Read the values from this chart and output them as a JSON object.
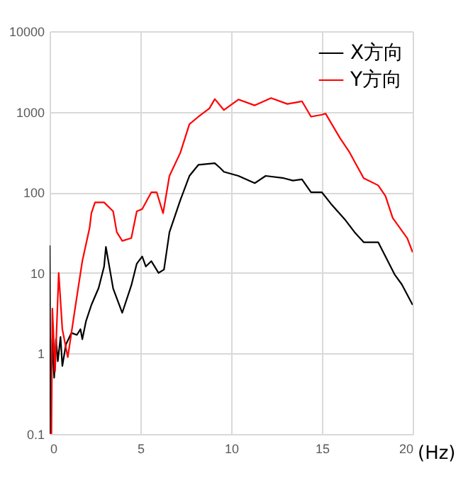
{
  "chart_data": {
    "type": "line",
    "xlabel": "(Hz)",
    "xlim": [
      0,
      20
    ],
    "xticks": [
      0,
      5,
      10,
      15,
      20
    ],
    "ylim": [
      0.1,
      10000
    ],
    "yticks": [
      0.1,
      1,
      10,
      100,
      1000,
      10000
    ],
    "log": "y",
    "grid": true,
    "legend": "top right",
    "marker": "none",
    "line_style": "solid",
    "series": [
      {
        "name": "X方向",
        "color": "#000000",
        "x": [
          0,
          0.05,
          0.15,
          0.25,
          0.35,
          0.45,
          0.6,
          0.7,
          0.9,
          1.2,
          1.5,
          1.7,
          1.8,
          2.0,
          2.3,
          2.7,
          3.0,
          3.1,
          3.5,
          4.0,
          4.5,
          4.8,
          5.1,
          5.3,
          5.6,
          6.0,
          6.3,
          6.6,
          7.2,
          7.7,
          8.2,
          9.1,
          9.4,
          9.6,
          10.4,
          11.3,
          11.9,
          12.9,
          13.4,
          13.9,
          14.4,
          15,
          15.5,
          16.3,
          16.8,
          17.3,
          18.1,
          19,
          19.4,
          20
        ],
        "values": [
          22,
          0.1,
          1.5,
          0.5,
          1.5,
          0.8,
          1.6,
          0.7,
          1.3,
          1.8,
          1.7,
          2.0,
          1.5,
          2.5,
          4,
          6.5,
          12,
          21,
          6.4,
          3.2,
          7,
          13,
          16,
          12,
          14,
          10,
          11,
          32,
          80,
          160,
          220,
          230,
          200,
          180,
          160,
          130,
          160,
          150,
          140,
          145,
          100,
          100,
          72,
          45,
          32,
          24,
          24,
          9.6,
          7.2,
          4
        ]
      },
      {
        "name": "Y方向",
        "color": "#ff0000",
        "x": [
          0,
          0.1,
          0.15,
          0.3,
          0.5,
          0.7,
          1.0,
          1.4,
          1.8,
          2.2,
          2.3,
          2.5,
          3.0,
          3.5,
          3.7,
          4.0,
          4.5,
          4.8,
          5.1,
          5.6,
          5.9,
          6.25,
          6.6,
          7.2,
          7.7,
          8.2,
          8.8,
          9.1,
          9.6,
          10.4,
          11.3,
          12.2,
          13.1,
          13.9,
          14.4,
          15,
          15.2,
          16,
          16.5,
          16.8,
          17.3,
          18.1,
          18.5,
          18.9,
          19.7,
          20
        ],
        "values": [
          0.1,
          0.1,
          3.6,
          0.6,
          10,
          2,
          0.9,
          3.6,
          14,
          36,
          55,
          75,
          75,
          58,
          32,
          25,
          27,
          58,
          62,
          100,
          100,
          55,
          160,
          310,
          700,
          870,
          1100,
          1440,
          1050,
          1420,
          1200,
          1480,
          1250,
          1350,
          870,
          920,
          950,
          470,
          320,
          240,
          150,
          122,
          90,
          48,
          27,
          18
        ]
      }
    ]
  }
}
